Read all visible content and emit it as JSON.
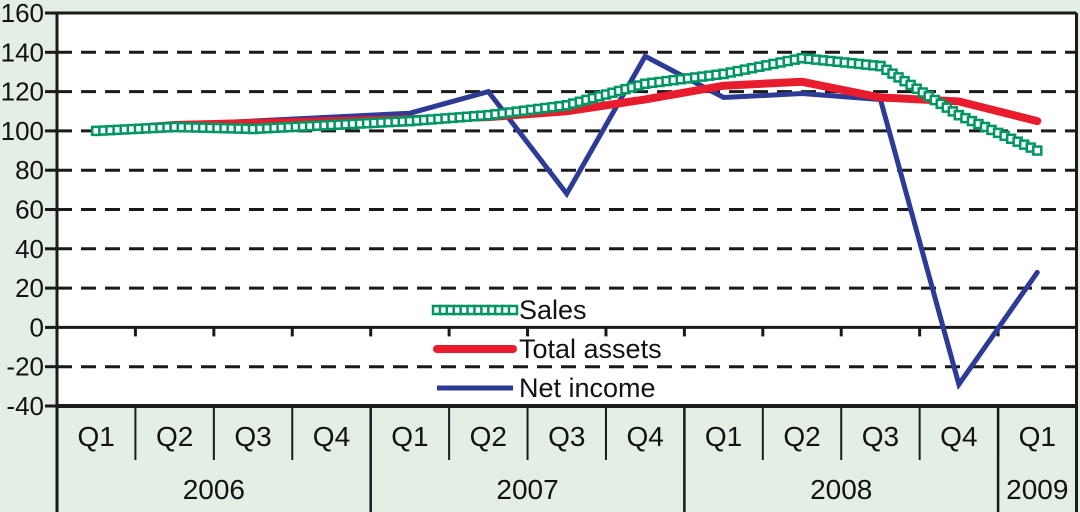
{
  "colors": {
    "background": "#e3efe5",
    "plot_background": "#ffffff",
    "axis": "#1a1a1a",
    "sales": "#009663",
    "total_assets": "#e91c2d",
    "net_income": "#2d3b96"
  },
  "chart_data": {
    "type": "line",
    "title": "",
    "xlabel": "",
    "ylabel": "",
    "grid": "dashed-horizontal",
    "legend_position": "center-bottom-inside",
    "y_axis": {
      "min": -40,
      "max": 160,
      "step": 20,
      "tick_labels": [
        "160",
        "140",
        "120",
        "100",
        "80",
        "60",
        "40",
        "20",
        "0",
        "-20",
        "-40"
      ]
    },
    "x_axis": {
      "quarter_labels": [
        "Q1",
        "Q2",
        "Q3",
        "Q4",
        "Q1",
        "Q2",
        "Q3",
        "Q4",
        "Q1",
        "Q2",
        "Q3",
        "Q4",
        "Q1"
      ],
      "year_groups": [
        {
          "label": "2006",
          "span": 4
        },
        {
          "label": "2007",
          "span": 4
        },
        {
          "label": "2008",
          "span": 4
        },
        {
          "label": "2009",
          "span": 1
        }
      ]
    },
    "series": [
      {
        "name": "Sales",
        "style": "square-chain",
        "color": "#009663",
        "values": [
          100,
          102,
          101,
          103,
          105,
          108,
          113,
          124,
          129,
          137,
          133,
          108,
          90
        ]
      },
      {
        "name": "Total assets",
        "style": "thick-solid",
        "color": "#e91c2d",
        "values": [
          100,
          103,
          104,
          105,
          106,
          107,
          110,
          116,
          123,
          125,
          117,
          115,
          105
        ]
      },
      {
        "name": "Net income",
        "style": "solid",
        "color": "#2d3b96",
        "values": [
          100,
          103,
          105,
          107,
          109,
          120,
          68,
          138,
          117,
          119,
          116,
          -29,
          28
        ]
      }
    ]
  }
}
